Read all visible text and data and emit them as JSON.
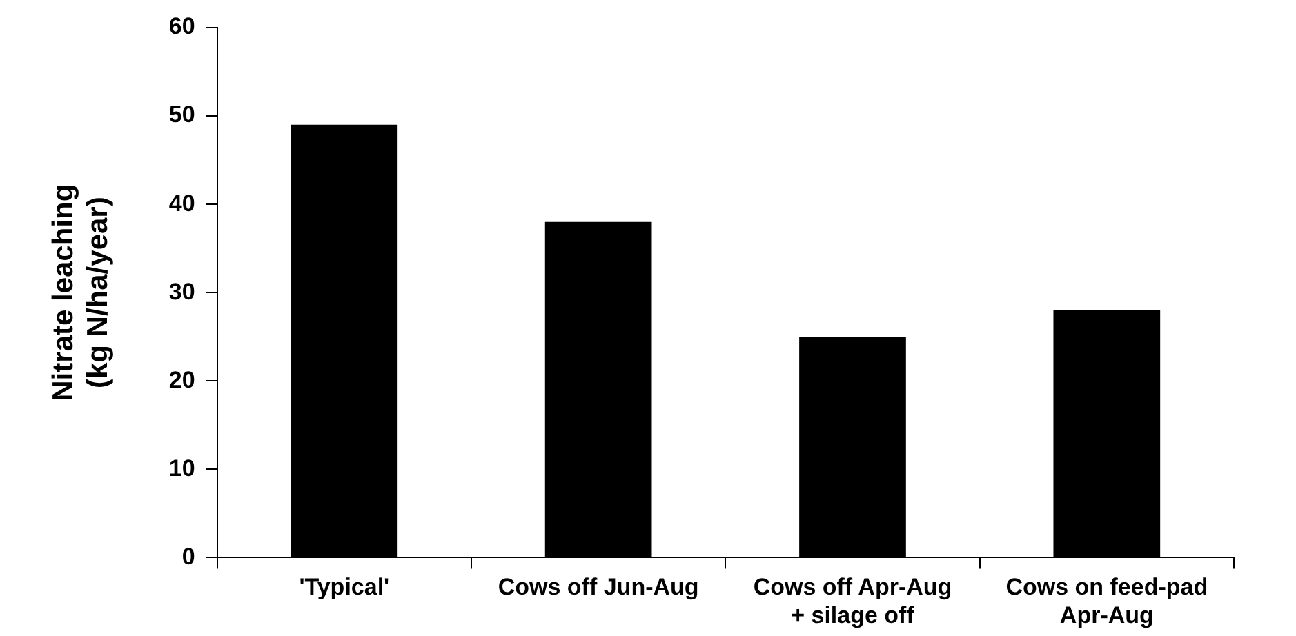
{
  "chart_data": {
    "type": "bar",
    "ylabel": "Nitrate leaching\n(kg N/ha/year)",
    "categories": [
      "'Typical'",
      "Cows off Jun-Aug",
      "Cows off Apr-Aug + silage off",
      "Cows on feed-pad Apr-Aug"
    ],
    "values": [
      49,
      38,
      25,
      28
    ],
    "color": "#000000",
    "ylim": [
      0,
      60
    ],
    "yticks": [
      0,
      10,
      20,
      30,
      40,
      50,
      60
    ],
    "grid": false,
    "legend": false
  }
}
